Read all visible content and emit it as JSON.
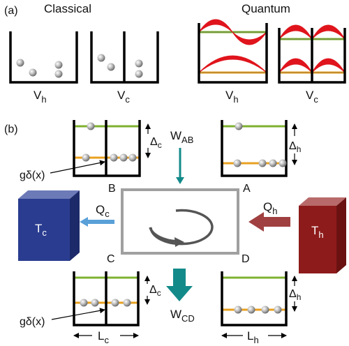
{
  "panel_a": {
    "label": "(a)",
    "classical_title": "Classical",
    "quantum_title": "Quantum",
    "classical_boxes": [
      {
        "label_main": "V",
        "label_sub": "h"
      },
      {
        "label_main": "V",
        "label_sub": "c"
      }
    ],
    "quantum_boxes": [
      {
        "label_main": "V",
        "label_sub": "h"
      },
      {
        "label_main": "V",
        "label_sub": "c"
      }
    ]
  },
  "panel_b": {
    "label": "(b)",
    "work_top": {
      "main": "W",
      "sub": "AB"
    },
    "work_bottom": {
      "main": "W",
      "sub": "CD"
    },
    "corners": {
      "A": "A",
      "B": "B",
      "C": "C",
      "D": "D"
    },
    "heat_cold": {
      "main": "Q",
      "sub": "c"
    },
    "heat_hot": {
      "main": "Q",
      "sub": "h"
    },
    "reservoir_cold": {
      "main": "T",
      "sub": "c",
      "color": "#2a3c8f"
    },
    "reservoir_hot": {
      "main": "T",
      "sub": "h",
      "color": "#8e1b1b"
    },
    "gap_top_left": {
      "main": "Δ",
      "sub": "c"
    },
    "gap_top_right": {
      "main": "Δ",
      "sub": "h"
    },
    "gap_bottom_left": {
      "main": "Δ",
      "sub": "c"
    },
    "gap_bottom_right": {
      "main": "Δ",
      "sub": "h"
    },
    "barrier_label_top": "gδ(x)",
    "barrier_label_bottom": "gδ(x)",
    "length_left": {
      "main": "L",
      "sub": "c"
    },
    "length_right": {
      "main": "L",
      "sub": "h"
    }
  },
  "colors": {
    "wave": "#e0141c",
    "ground_level": "#e8a020",
    "excited_level": "#7fb030",
    "arrow_work": "#138a8a",
    "arrow_cold": "#5aa0d8",
    "arrow_hot": "#a04040",
    "cycle_rect": "#a0a0a0"
  }
}
